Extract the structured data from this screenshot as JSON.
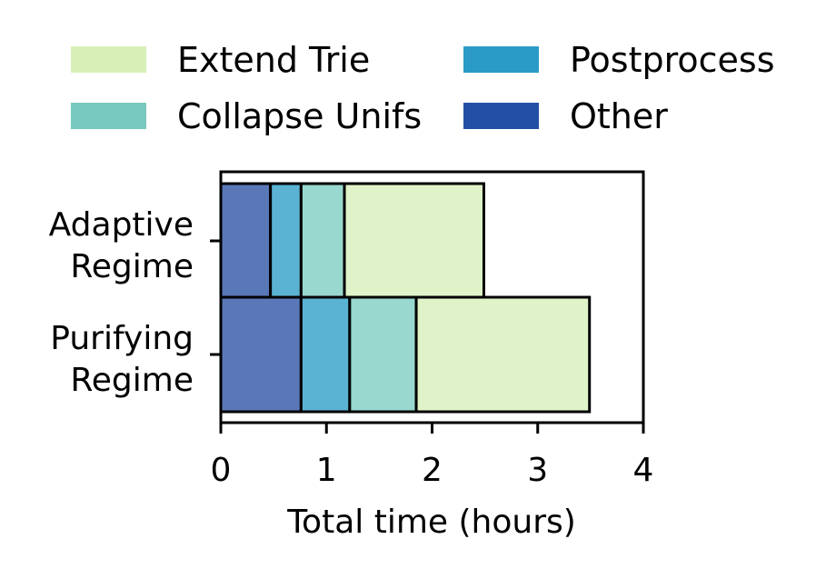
{
  "chart_data": {
    "type": "bar",
    "orientation": "horizontal",
    "stacked": true,
    "categories": [
      "Adaptive\nRegime",
      "Purifying\nRegime"
    ],
    "series": [
      {
        "name": "Other",
        "values": [
          0.47,
          0.76
        ],
        "color": "#5a78b8"
      },
      {
        "name": "Postprocess",
        "values": [
          0.29,
          0.46
        ],
        "color": "#5bb3d3"
      },
      {
        "name": "Collapse Unifs",
        "values": [
          0.41,
          0.63
        ],
        "color": "#98d8cf"
      },
      {
        "name": "Extend Trie",
        "values": [
          1.32,
          1.64
        ],
        "color": "#e0f3c8"
      }
    ],
    "legend": {
      "placement": "top",
      "entries": [
        {
          "name": "Extend Trie",
          "color": "#d8f0b8"
        },
        {
          "name": "Collapse Unifs",
          "color": "#77c9bf"
        },
        {
          "name": "Postprocess",
          "color": "#2a9bc6"
        },
        {
          "name": "Other",
          "color": "#2350a6"
        }
      ]
    },
    "xlabel": "Total time (hours)",
    "ylabel": "",
    "xlim": [
      0,
      4
    ],
    "xticks": [
      "0",
      "1",
      "2",
      "3",
      "4"
    ],
    "grid": false
  }
}
